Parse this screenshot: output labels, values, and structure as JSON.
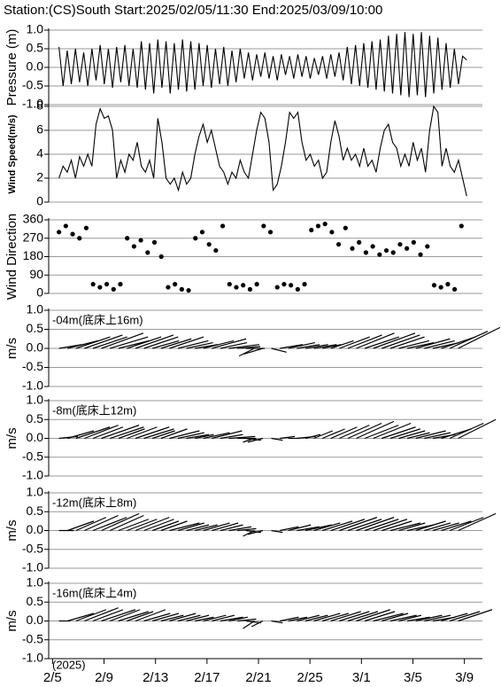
{
  "chart_data": [
    {
      "type": "line",
      "title": "Station:(CS)South  Start:2025/02/05/11:30  End:2025/03/09/10:00",
      "ylabel": "Pressure (m)",
      "color": "#000000",
      "grid": true,
      "xlim": [
        -0.3,
        33.4
      ],
      "ylim": [
        -1,
        1
      ],
      "yticks": [
        {
          "value": 1,
          "label": "1.0"
        },
        0.5,
        {
          "value": 0,
          "label": "0.0"
        },
        -0.5,
        {
          "value": -1,
          "label": "-1.0"
        }
      ],
      "x": [
        0.5,
        0.82,
        1.14,
        1.46,
        1.78,
        2.1,
        2.42,
        2.74,
        3.06,
        3.38,
        3.7,
        4.02,
        4.34,
        4.66,
        4.98,
        5.3,
        5.62,
        5.94,
        6.26,
        6.58,
        6.9,
        7.22,
        7.54,
        7.86,
        8.18,
        8.5,
        8.82,
        9.14,
        9.46,
        9.78,
        10.1,
        10.42,
        10.74,
        11.06,
        11.38,
        11.7,
        12.02,
        12.34,
        12.66,
        12.98,
        13.3,
        13.62,
        13.94,
        14.26,
        14.58,
        14.9,
        15.22,
        15.54,
        15.86,
        16.18,
        16.5,
        16.82,
        17.14,
        17.46,
        17.78,
        18.1,
        18.42,
        18.74,
        19.06,
        19.38,
        19.7,
        20.02,
        20.34,
        20.66,
        20.98,
        21.3,
        21.62,
        21.94,
        22.26,
        22.58,
        22.9,
        23.22,
        23.54,
        23.86,
        24.18,
        24.5,
        24.82,
        25.14,
        25.46,
        25.78,
        26.1,
        26.42,
        26.74,
        27.06,
        27.38,
        27.7,
        28.02,
        28.34,
        28.66,
        28.98,
        29.3,
        29.62,
        29.94,
        30.26,
        30.58,
        30.9,
        31.22,
        31.54,
        31.86,
        32.18
      ],
      "values": [
        0.55,
        -0.5,
        0.45,
        -0.45,
        0.5,
        -0.4,
        0.4,
        -0.5,
        0.5,
        -0.35,
        0.6,
        -0.45,
        0.5,
        -0.55,
        0.55,
        -0.4,
        0.6,
        -0.5,
        0.5,
        -0.55,
        0.7,
        -0.6,
        0.65,
        -0.7,
        0.75,
        -0.55,
        0.7,
        -0.7,
        0.65,
        -0.6,
        0.75,
        -0.65,
        0.7,
        -0.6,
        0.65,
        -0.5,
        0.6,
        -0.55,
        0.5,
        -0.45,
        0.55,
        -0.5,
        0.45,
        -0.4,
        0.5,
        -0.3,
        0.4,
        -0.35,
        0.35,
        -0.25,
        0.4,
        -0.3,
        0.3,
        -0.35,
        0.35,
        -0.2,
        0.3,
        -0.3,
        0.35,
        -0.25,
        0.3,
        -0.3,
        0.25,
        -0.2,
        0.3,
        -0.3,
        0.35,
        -0.25,
        0.4,
        -0.35,
        0.55,
        -0.45,
        0.6,
        -0.5,
        0.65,
        -0.55,
        0.7,
        -0.6,
        0.75,
        -0.65,
        0.85,
        -0.7,
        0.9,
        -0.75,
        0.95,
        -0.8,
        0.9,
        -0.75,
        0.95,
        -0.8,
        0.85,
        -0.7,
        0.8,
        -0.6,
        0.65,
        -0.55,
        0.5,
        -0.45,
        0.3,
        0.2
      ]
    },
    {
      "type": "line",
      "ylabel": "Wind Speed(m/s)",
      "color": "#000000",
      "grid": true,
      "xlim": [
        -0.3,
        33.4
      ],
      "ylim": [
        0,
        8
      ],
      "yticks": [
        0,
        2,
        4,
        6,
        8
      ],
      "x": [
        0.5,
        0.82,
        1.14,
        1.46,
        1.78,
        2.1,
        2.42,
        2.74,
        3.06,
        3.38,
        3.7,
        4.02,
        4.34,
        4.66,
        4.98,
        5.3,
        5.62,
        5.94,
        6.26,
        6.58,
        6.9,
        7.22,
        7.54,
        7.86,
        8.18,
        8.5,
        8.82,
        9.14,
        9.46,
        9.78,
        10.1,
        10.42,
        10.74,
        11.06,
        11.38,
        11.7,
        12.02,
        12.34,
        12.66,
        12.98,
        13.3,
        13.62,
        13.94,
        14.26,
        14.58,
        14.9,
        15.22,
        15.54,
        15.86,
        16.18,
        16.5,
        16.82,
        17.14,
        17.46,
        17.78,
        18.1,
        18.42,
        18.74,
        19.06,
        19.38,
        19.7,
        20.02,
        20.34,
        20.66,
        20.98,
        21.3,
        21.62,
        21.94,
        22.26,
        22.58,
        22.9,
        23.22,
        23.54,
        23.86,
        24.18,
        24.5,
        24.82,
        25.14,
        25.46,
        25.78,
        26.1,
        26.42,
        26.74,
        27.06,
        27.38,
        27.7,
        28.02,
        28.34,
        28.66,
        28.98,
        29.3,
        29.62,
        29.94,
        30.26,
        30.58,
        30.9,
        31.22,
        31.54,
        31.86,
        32.18
      ],
      "values": [
        2,
        3,
        2.5,
        3.5,
        2,
        3.8,
        3,
        4,
        3,
        6.5,
        7.8,
        7,
        7.2,
        6,
        2,
        3.5,
        2.5,
        4,
        3.5,
        5,
        3,
        2.5,
        3.5,
        2,
        7,
        5,
        2,
        1.5,
        2,
        1,
        2.5,
        1.5,
        2,
        4,
        5.5,
        6.5,
        5,
        6,
        4.5,
        3,
        2.5,
        1.5,
        2.5,
        2,
        3.5,
        2.5,
        2,
        4,
        6,
        7.5,
        7,
        5,
        1,
        1.5,
        3,
        5,
        7.5,
        7,
        7.5,
        5,
        3.5,
        4,
        3,
        3.5,
        2,
        2.5,
        5,
        6.8,
        5.5,
        3.5,
        4.5,
        3.5,
        4,
        3,
        4.5,
        3,
        3.5,
        2.5,
        4.5,
        6,
        6.5,
        5,
        4.5,
        3,
        4,
        3,
        5,
        3.5,
        4.5,
        2.5,
        6,
        8,
        7.5,
        3,
        4.5,
        3,
        2.5,
        3.5,
        2,
        0.5
      ]
    },
    {
      "type": "scatter",
      "ylabel": "Wind Direction",
      "color": "#000000",
      "grid": true,
      "xlim": [
        -0.3,
        33.4
      ],
      "ylim": [
        0,
        360
      ],
      "yticks": [
        0,
        90,
        180,
        270,
        360
      ],
      "x": [
        0.5,
        1.03,
        1.56,
        2.09,
        2.62,
        3.15,
        3.68,
        4.21,
        4.74,
        5.27,
        5.8,
        6.33,
        6.86,
        7.39,
        7.92,
        8.45,
        8.98,
        9.51,
        10.04,
        10.57,
        11.1,
        11.63,
        12.16,
        12.69,
        13.22,
        13.75,
        14.28,
        14.81,
        15.34,
        15.87,
        16.4,
        16.93,
        17.46,
        17.99,
        18.52,
        19.05,
        19.58,
        20.11,
        20.64,
        21.17,
        21.7,
        22.23,
        22.76,
        23.29,
        23.82,
        24.35,
        24.88,
        25.41,
        25.94,
        26.47,
        27.0,
        27.53,
        28.06,
        28.59,
        29.12,
        29.65,
        30.18,
        30.71,
        31.24,
        31.77
      ],
      "values": [
        300,
        330,
        290,
        270,
        320,
        45,
        30,
        45,
        20,
        45,
        270,
        230,
        260,
        200,
        250,
        180,
        30,
        45,
        20,
        15,
        270,
        300,
        240,
        210,
        330,
        45,
        30,
        40,
        20,
        45,
        330,
        300,
        30,
        45,
        40,
        20,
        45,
        310,
        330,
        340,
        300,
        240,
        320,
        220,
        250,
        200,
        230,
        190,
        210,
        200,
        240,
        220,
        250,
        190,
        230,
        40,
        30,
        45,
        20,
        330
      ]
    },
    {
      "type": "stick",
      "label": "-04m(底床上16m)",
      "ylabel": "m/s",
      "color": "#000000",
      "grid": true,
      "xlim": [
        -0.3,
        33.4
      ],
      "ylim": [
        -1,
        1
      ],
      "yticks": [
        {
          "value": 1,
          "label": "1.0"
        },
        0.5,
        {
          "value": 0,
          "label": "0.0"
        },
        -0.5,
        {
          "value": -1,
          "label": "-1.0"
        }
      ],
      "x": [
        0.5,
        1.16,
        1.82,
        2.48,
        3.14,
        3.8,
        4.46,
        5.12,
        5.78,
        6.44,
        7.1,
        7.76,
        8.42,
        9.08,
        9.74,
        10.4,
        11.06,
        11.72,
        12.38,
        13.04,
        13.7,
        14.36,
        15.02,
        15.68,
        16.34,
        17.0,
        17.66,
        18.32,
        18.98,
        19.64,
        20.3,
        20.96,
        21.62,
        22.28,
        22.94,
        23.6,
        24.26,
        24.92,
        25.58,
        26.24,
        26.9,
        27.56,
        28.22,
        28.88,
        29.54,
        30.2,
        30.86,
        31.52
      ],
      "u": [
        0.6,
        0.8,
        0.9,
        1.0,
        0.9,
        1.1,
        1.0,
        0.8,
        0.9,
        1.0,
        0.9,
        0.7,
        0.8,
        0.9,
        0.8,
        0.7,
        0.6,
        0.8,
        0.9,
        0.7,
        0.8,
        0.6,
        0.5,
        -0.4,
        -0.5,
        0.4,
        0.6,
        0.7,
        0.6,
        0.6,
        0.6,
        0.5,
        0.6,
        0.8,
        0.9,
        1.0,
        0.9,
        1.1,
        1.0,
        0.9,
        0.8,
        0.7,
        0.9,
        0.8,
        0.7,
        0.9,
        1.0,
        1.1
      ],
      "v": [
        0.1,
        0.2,
        0.3,
        0.35,
        0.3,
        0.4,
        0.3,
        0.2,
        0.3,
        0.35,
        0.3,
        0.2,
        0.25,
        0.3,
        0.2,
        0.15,
        0.1,
        0.2,
        0.25,
        0.15,
        0.1,
        0.05,
        0.0,
        -0.2,
        -0.15,
        -0.1,
        0.1,
        0.15,
        0.1,
        0.1,
        0.1,
        0.1,
        0.2,
        0.3,
        0.35,
        0.4,
        0.3,
        0.4,
        0.35,
        0.3,
        0.2,
        0.15,
        0.25,
        0.2,
        0.15,
        0.3,
        0.45,
        0.55
      ]
    },
    {
      "type": "stick",
      "label": "-8m(底床上12m)",
      "ylabel": "m/s",
      "color": "#000000",
      "grid": true,
      "xlim": [
        -0.3,
        33.4
      ],
      "ylim": [
        -1,
        1
      ],
      "yticks": [
        {
          "value": 1,
          "label": "1.0"
        },
        0.5,
        {
          "value": 0,
          "label": "0.0"
        },
        -0.5,
        {
          "value": -1,
          "label": "-1.0"
        }
      ],
      "x": [
        0.5,
        1.16,
        1.82,
        2.48,
        3.14,
        3.8,
        4.46,
        5.12,
        5.78,
        6.44,
        7.1,
        7.76,
        8.42,
        9.08,
        9.74,
        10.4,
        11.06,
        11.72,
        12.38,
        13.04,
        13.7,
        14.36,
        15.02,
        15.68,
        16.34,
        17.0,
        17.66,
        18.32,
        18.98,
        19.64,
        20.3,
        20.96,
        21.62,
        22.28,
        22.94,
        23.6,
        24.26,
        24.92,
        25.58,
        26.24,
        26.9,
        27.56,
        28.22,
        28.88,
        29.54,
        30.2,
        30.86,
        31.52
      ],
      "u": [
        0.5,
        0.7,
        0.9,
        0.9,
        0.8,
        1.0,
        0.9,
        0.7,
        0.8,
        0.9,
        0.8,
        0.6,
        0.7,
        0.8,
        0.7,
        0.6,
        0.5,
        0.7,
        0.8,
        0.6,
        0.7,
        0.5,
        0.4,
        -0.3,
        -0.4,
        0.3,
        0.4,
        0.3,
        0.5,
        0.4,
        0.5,
        0.6,
        0.7,
        0.8,
        0.9,
        1.0,
        0.9,
        1.0,
        0.9,
        0.8,
        0.7,
        0.6,
        0.8,
        0.7,
        0.6,
        0.8,
        0.9,
        1.0
      ],
      "v": [
        0.05,
        0.2,
        0.3,
        0.35,
        0.3,
        0.35,
        0.3,
        0.25,
        0.3,
        0.3,
        0.25,
        0.2,
        0.25,
        0.2,
        0.15,
        0.1,
        0.1,
        0.15,
        0.2,
        0.1,
        0.05,
        0.0,
        -0.05,
        -0.1,
        -0.1,
        -0.05,
        0.05,
        0.0,
        0.05,
        0.1,
        0.2,
        0.25,
        0.3,
        0.35,
        0.4,
        0.45,
        0.35,
        0.4,
        0.3,
        0.25,
        0.2,
        0.15,
        0.2,
        0.15,
        0.1,
        0.25,
        0.4,
        0.5
      ]
    },
    {
      "type": "stick",
      "label": "-12m(底床上8m)",
      "ylabel": "m/s",
      "color": "#000000",
      "grid": true,
      "xlim": [
        -0.3,
        33.4
      ],
      "ylim": [
        -1,
        1
      ],
      "yticks": [
        {
          "value": 1,
          "label": "1.0"
        },
        0.5,
        {
          "value": 0,
          "label": "0.0"
        },
        -0.5,
        {
          "value": -1,
          "label": "-1.0"
        }
      ],
      "x": [
        0.5,
        1.16,
        1.82,
        2.48,
        3.14,
        3.8,
        4.46,
        5.12,
        5.78,
        6.44,
        7.1,
        7.76,
        8.42,
        9.08,
        9.74,
        10.4,
        11.06,
        11.72,
        12.38,
        13.04,
        13.7,
        14.36,
        15.02,
        15.68,
        16.34,
        17.0,
        17.66,
        18.32,
        18.98,
        19.64,
        20.3,
        20.96,
        21.62,
        22.28,
        22.94,
        23.6,
        24.26,
        24.92,
        25.58,
        26.24,
        26.9,
        27.56,
        28.22,
        28.88,
        29.54,
        30.2,
        30.86,
        31.52
      ],
      "u": [
        0.4,
        0.7,
        0.8,
        0.9,
        0.9,
        1.0,
        0.9,
        0.8,
        0.8,
        0.9,
        0.8,
        0.7,
        0.7,
        0.8,
        0.7,
        0.6,
        0.6,
        0.7,
        0.7,
        0.6,
        0.6,
        0.5,
        0.4,
        -0.3,
        -0.4,
        0.3,
        0.5,
        0.6,
        0.6,
        0.7,
        0.7,
        0.8,
        0.9,
        1.0,
        0.9,
        1.0,
        0.9,
        0.9,
        0.8,
        0.8,
        0.7,
        0.7,
        0.8,
        0.7,
        0.7,
        0.8,
        0.9,
        1.0
      ],
      "v": [
        0.0,
        0.25,
        0.35,
        0.4,
        0.35,
        0.45,
        0.4,
        0.3,
        0.3,
        0.35,
        0.3,
        0.25,
        0.25,
        0.2,
        0.2,
        0.15,
        0.15,
        0.2,
        0.2,
        0.15,
        0.1,
        0.05,
        -0.05,
        -0.15,
        -0.1,
        -0.05,
        0.1,
        0.15,
        0.1,
        0.15,
        0.2,
        0.25,
        0.3,
        0.35,
        0.3,
        0.35,
        0.3,
        0.3,
        0.25,
        0.2,
        0.2,
        0.15,
        0.25,
        0.2,
        0.2,
        0.25,
        0.35,
        0.45
      ]
    },
    {
      "type": "stick",
      "label": "-16m(底床上4m)",
      "ylabel": "m/s",
      "color": "#000000",
      "grid": true,
      "xlim": [
        -0.3,
        33.4
      ],
      "ylim": [
        -1,
        1
      ],
      "yticks": [
        {
          "value": 1,
          "label": "1.0"
        },
        0.5,
        {
          "value": 0,
          "label": "0.0"
        },
        -0.5,
        {
          "value": -1,
          "label": "-1.0"
        }
      ],
      "xticks": [
        {
          "value": 0,
          "label": "2/5"
        },
        {
          "value": 4,
          "label": "2/9"
        },
        {
          "value": 8,
          "label": "2/13"
        },
        {
          "value": 12,
          "label": "2/17"
        },
        {
          "value": 16,
          "label": "2/21"
        },
        {
          "value": 20,
          "label": "2/25"
        },
        {
          "value": 24,
          "label": "3/1"
        },
        {
          "value": 28,
          "label": "3/5"
        },
        {
          "value": 32,
          "label": "3/9"
        }
      ],
      "year_label": "(2025)",
      "x": [
        0.5,
        1.16,
        1.82,
        2.48,
        3.14,
        3.8,
        4.46,
        5.12,
        5.78,
        6.44,
        7.1,
        7.76,
        8.42,
        9.08,
        9.74,
        10.4,
        11.06,
        11.72,
        12.38,
        13.04,
        13.7,
        14.36,
        15.02,
        15.68,
        16.34,
        17.0,
        17.66,
        18.32,
        18.98,
        19.64,
        20.3,
        20.96,
        21.62,
        22.28,
        22.94,
        23.6,
        24.26,
        24.92,
        25.58,
        26.24,
        26.9,
        27.56,
        28.22,
        28.88,
        29.54,
        30.2,
        30.86,
        31.52
      ],
      "u": [
        0.3,
        0.7,
        0.8,
        0.9,
        0.8,
        0.9,
        0.8,
        0.8,
        0.7,
        0.8,
        0.7,
        0.7,
        0.6,
        0.7,
        0.6,
        0.6,
        0.5,
        0.6,
        0.6,
        0.6,
        0.5,
        0.5,
        0.4,
        -0.3,
        -0.3,
        0.3,
        0.5,
        0.5,
        0.6,
        0.6,
        0.7,
        0.7,
        0.8,
        0.8,
        0.8,
        0.9,
        0.8,
        0.8,
        0.7,
        0.7,
        0.6,
        0.6,
        0.7,
        0.7,
        0.6,
        0.7,
        0.8,
        0.9
      ],
      "v": [
        0.0,
        0.2,
        0.3,
        0.35,
        0.3,
        0.3,
        0.3,
        0.25,
        0.25,
        0.3,
        0.2,
        0.2,
        0.15,
        0.2,
        0.15,
        0.15,
        0.1,
        0.15,
        0.15,
        0.1,
        0.1,
        0.05,
        -0.05,
        -0.2,
        -0.15,
        -0.05,
        0.1,
        0.1,
        0.15,
        0.15,
        0.2,
        0.2,
        0.25,
        0.25,
        0.25,
        0.3,
        0.25,
        0.2,
        0.2,
        0.15,
        0.15,
        0.1,
        0.15,
        0.15,
        0.1,
        0.2,
        0.25,
        0.3
      ]
    }
  ]
}
